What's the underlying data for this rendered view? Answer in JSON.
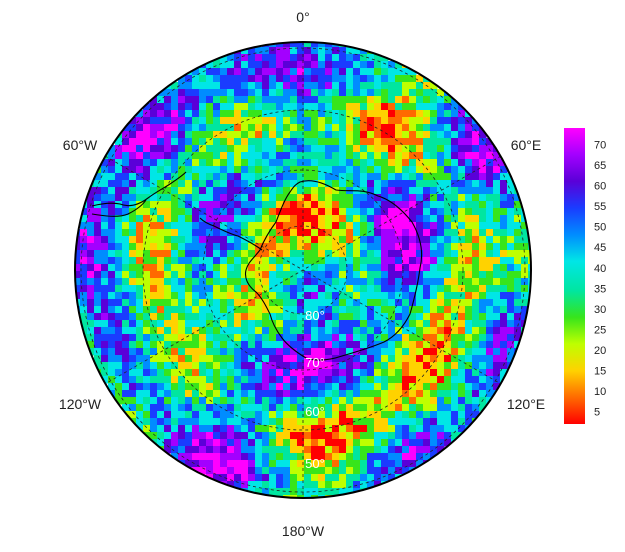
{
  "map": {
    "projection": "south-polar-stereographic",
    "longitude_labels": {
      "top": "0°",
      "upper_left": "60°W",
      "upper_right": "60°E",
      "lower_left": "120°W",
      "lower_right": "120°E",
      "bottom": "180°W"
    },
    "latitude_labels": [
      "80°",
      "70°",
      "60°",
      "50°"
    ],
    "graticule_latitudes": [
      80,
      70,
      60,
      50
    ],
    "graticule_style": "dashed",
    "coastline": "Antarctica and southern South America"
  },
  "colorbar": {
    "ticks": [
      "70",
      "65",
      "60",
      "55",
      "50",
      "45",
      "40",
      "35",
      "30",
      "25",
      "20",
      "15",
      "10",
      "5"
    ],
    "min": 2,
    "max": 74,
    "colors": [
      "#ff0000",
      "#ff6a00",
      "#ffd200",
      "#bfff00",
      "#37e51b",
      "#00e6a0",
      "#00e6e6",
      "#008cff",
      "#1a3cff",
      "#5a00d8",
      "#a300ff",
      "#ff00ff"
    ]
  }
}
